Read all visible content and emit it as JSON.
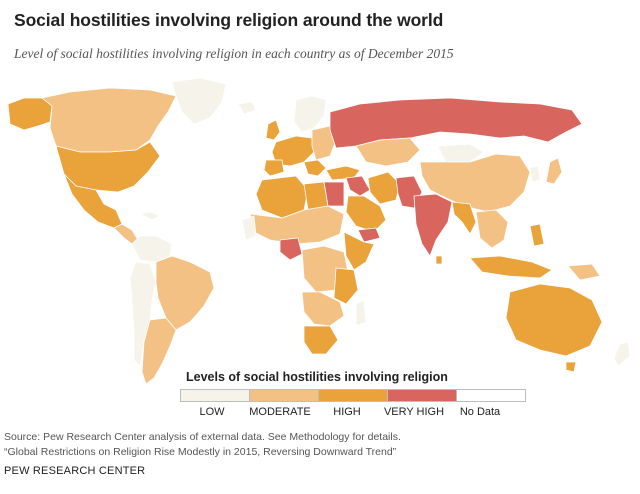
{
  "header": {
    "title": "Social hostilities involving religion around the world",
    "subtitle": "Level of social hostilities involving religion in each country as of December 2015"
  },
  "legend": {
    "title": "Levels of social hostilities involving religion",
    "items": [
      {
        "label": "LOW",
        "color": "#f5f3ea"
      },
      {
        "label": "MODERATE",
        "color": "#f3c184"
      },
      {
        "label": "HIGH",
        "color": "#eaa23a"
      },
      {
        "label": "VERY HIGH",
        "color": "#d9655f"
      },
      {
        "label": "No Data",
        "color": "#ffffff"
      }
    ]
  },
  "colors": {
    "low": "#f5f3ea",
    "moderate": "#f3c184",
    "high": "#eaa23a",
    "very_high": "#d9655f",
    "border": "#ffffff"
  },
  "footer": {
    "source_line1": "Source: Pew Research Center analysis of external data. See Methodology for details.",
    "source_line2": "“Global Restrictions on Religion Rise Modestly in 2015, Reversing Downward Trend”",
    "brand": "PEW RESEARCH CENTER"
  }
}
